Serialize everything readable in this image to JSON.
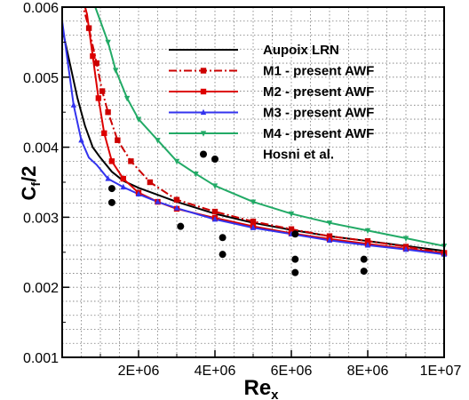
{
  "chart_data": {
    "type": "line",
    "xlabel": "Re",
    "xlabel_sub": "x",
    "ylabel": "C",
    "ylabel_sub": "f",
    "ylabel_suffix": "/2",
    "xlim": [
      0,
      10000000
    ],
    "ylim": [
      0.001,
      0.006
    ],
    "grid": true,
    "legend_position": "top-right",
    "x_ticks": [
      {
        "value": 2000000,
        "label": "2E+06"
      },
      {
        "value": 4000000,
        "label": "4E+06"
      },
      {
        "value": 6000000,
        "label": "6E+06"
      },
      {
        "value": 8000000,
        "label": "8E+06"
      },
      {
        "value": 10000000,
        "label": "1E+07"
      }
    ],
    "y_ticks": [
      {
        "value": 0.001,
        "label": "0.001"
      },
      {
        "value": 0.002,
        "label": "0.002"
      },
      {
        "value": 0.003,
        "label": "0.003"
      },
      {
        "value": 0.004,
        "label": "0.004"
      },
      {
        "value": 0.005,
        "label": "0.005"
      },
      {
        "value": 0.006,
        "label": "0.006"
      }
    ],
    "series": [
      {
        "name": "Aupoix LRN",
        "color": "#000000",
        "line": "solid",
        "marker": "none",
        "x": [
          0,
          200000,
          400000,
          600000,
          800000,
          1000000,
          1300000,
          1600000,
          2000000,
          2500000,
          3000000,
          4000000,
          5000000,
          6000000,
          7000000,
          8000000,
          9000000,
          10000000
        ],
        "y": [
          0.0057,
          0.0052,
          0.0047,
          0.0043,
          0.004,
          0.00385,
          0.00365,
          0.00352,
          0.00342,
          0.00332,
          0.00322,
          0.00305,
          0.00292,
          0.00282,
          0.00273,
          0.00266,
          0.00259,
          0.00252
        ]
      },
      {
        "name": "M1 - present AWF",
        "color": "#cc0000",
        "line": "dashdot",
        "marker": "square",
        "x": [
          500000,
          700000,
          900000,
          1050000,
          1200000,
          1450000,
          1800000,
          2300000,
          3000000,
          4000000,
          5000000,
          6000000,
          7000000,
          8000000,
          9000000,
          10000000
        ],
        "y": [
          0.0061,
          0.0057,
          0.0052,
          0.0048,
          0.0045,
          0.0041,
          0.0038,
          0.0035,
          0.00325,
          0.00308,
          0.00294,
          0.00283,
          0.00273,
          0.00266,
          0.00258,
          0.00249
        ],
        "marker_x": [
          700000,
          900000,
          1050000,
          1200000,
          1450000,
          1800000,
          2300000,
          3000000,
          4000000,
          5000000,
          6000000,
          7000000,
          8000000,
          9000000,
          10000000
        ],
        "marker_y": [
          0.0057,
          0.0052,
          0.0048,
          0.0045,
          0.0041,
          0.0038,
          0.0035,
          0.00325,
          0.00308,
          0.00294,
          0.00283,
          0.00273,
          0.00266,
          0.00258,
          0.00249
        ]
      },
      {
        "name": "M2 - present AWF",
        "color": "#dd0000",
        "line": "solid",
        "marker": "square",
        "x": [
          500000,
          650000,
          800000,
          950000,
          1100000,
          1300000,
          1600000,
          2000000,
          2500000,
          3000000,
          4000000,
          5000000,
          6000000,
          7000000,
          8000000,
          9000000,
          10000000
        ],
        "y": [
          0.0062,
          0.0059,
          0.0053,
          0.0047,
          0.0042,
          0.0038,
          0.00355,
          0.00335,
          0.00322,
          0.00312,
          0.00299,
          0.00287,
          0.00277,
          0.00269,
          0.00262,
          0.00255,
          0.00249
        ],
        "marker_x": [
          800000,
          950000,
          1100000,
          1300000,
          1600000,
          2000000,
          2500000,
          3000000,
          4000000,
          5000000,
          6000000,
          7000000,
          8000000,
          9000000,
          10000000
        ],
        "marker_y": [
          0.0053,
          0.0047,
          0.0042,
          0.0038,
          0.00355,
          0.00335,
          0.00322,
          0.00312,
          0.00299,
          0.00287,
          0.00277,
          0.00269,
          0.00262,
          0.00255,
          0.00249
        ]
      },
      {
        "name": "M3 - present AWF",
        "color": "#3333ee",
        "line": "solid",
        "marker": "triangle",
        "x": [
          0,
          150000,
          300000,
          500000,
          700000,
          900000,
          1200000,
          1600000,
          2000000,
          2500000,
          3000000,
          4000000,
          5000000,
          6000000,
          7000000,
          8000000,
          9000000,
          10000000
        ],
        "y": [
          0.0058,
          0.0052,
          0.0046,
          0.0041,
          0.00385,
          0.00375,
          0.00355,
          0.00343,
          0.00333,
          0.00322,
          0.00313,
          0.00297,
          0.00285,
          0.00276,
          0.00267,
          0.0026,
          0.00254,
          0.00247
        ],
        "marker_x": [
          300000,
          500000,
          1200000,
          1600000,
          2000000,
          2500000,
          3000000,
          4000000,
          5000000,
          6000000,
          7000000,
          8000000,
          9000000,
          10000000
        ],
        "marker_y": [
          0.0046,
          0.0041,
          0.00355,
          0.00343,
          0.00333,
          0.00322,
          0.00313,
          0.00297,
          0.00285,
          0.00276,
          0.00267,
          0.0026,
          0.00254,
          0.00247
        ]
      },
      {
        "name": "M4 - present AWF",
        "color": "#22aa66",
        "line": "solid",
        "marker": "triangle-down",
        "x": [
          800000,
          1000000,
          1200000,
          1400000,
          1700000,
          2000000,
          2500000,
          3000000,
          3500000,
          4000000,
          5000000,
          6000000,
          7000000,
          8000000,
          9000000,
          10000000
        ],
        "y": [
          0.0061,
          0.0058,
          0.0055,
          0.0051,
          0.0047,
          0.0044,
          0.0041,
          0.0038,
          0.00362,
          0.00345,
          0.00322,
          0.00305,
          0.00292,
          0.00281,
          0.0027,
          0.00259
        ],
        "marker_x": [
          1200000,
          1400000,
          1700000,
          2000000,
          2500000,
          3000000,
          3500000,
          4000000,
          5000000,
          6000000,
          7000000,
          8000000,
          9000000,
          10000000
        ],
        "marker_y": [
          0.0055,
          0.0051,
          0.0047,
          0.0044,
          0.0041,
          0.0038,
          0.00362,
          0.00345,
          0.00322,
          0.00305,
          0.00292,
          0.00281,
          0.0027,
          0.00259
        ]
      },
      {
        "name": "Hosni et al.",
        "color": "#000000",
        "line": "none",
        "marker": "circle",
        "x": [
          1300000,
          1300000,
          3100000,
          4000000,
          4200000,
          4200000,
          6100000,
          6100000,
          6100000,
          7900000,
          7900000
        ],
        "y": [
          0.00341,
          0.00321,
          0.00287,
          0.00383,
          0.00271,
          0.00247,
          0.00276,
          0.0024,
          0.00221,
          0.0024,
          0.00223
        ]
      }
    ]
  }
}
